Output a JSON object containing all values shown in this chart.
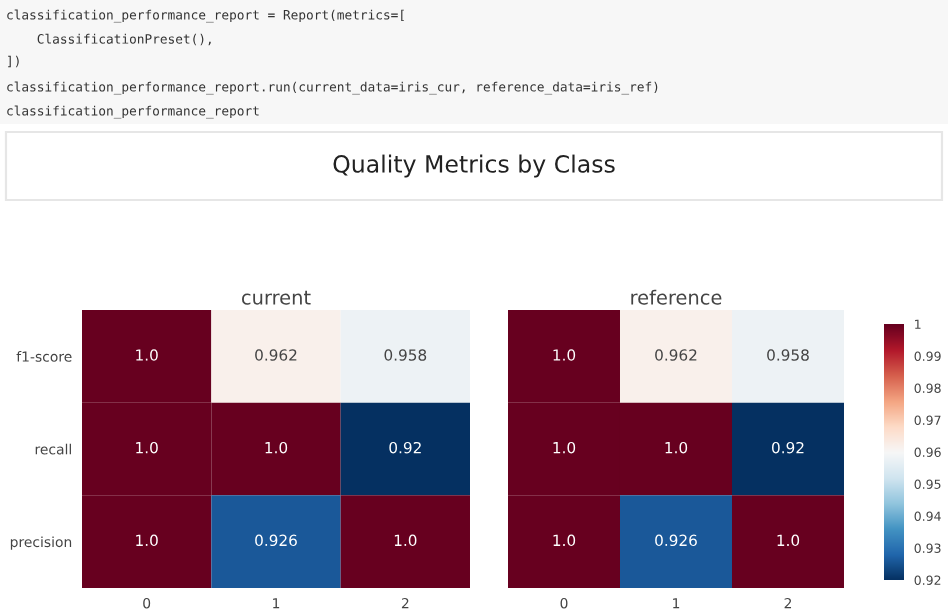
{
  "chart_data": [
    {
      "type": "heatmap",
      "title": "Quality Metrics by Class",
      "subtitle": "current",
      "annotations": [
        "classification_performance_report = Report(metrics=[",
        "    ClassificationPreset(),",
        "])",
        "classification_performance_report.run(current_data=iris_cur, reference_data=iris_ref)",
        "classification_performance_report"
      ],
      "categories": [
        "0",
        "1",
        "2"
      ],
      "y_categories": [
        "f1-score",
        "recall",
        "precision"
      ],
      "cells": [
        [
          1.0,
          0.962,
          0.958
        ],
        [
          1.0,
          1.0,
          0.92
        ],
        [
          1.0,
          0.926,
          1.0
        ]
      ],
      "cell_labels": [
        [
          "1.0",
          "0.962",
          "0.958"
        ],
        [
          "1.0",
          "1.0",
          "0.92"
        ],
        [
          "1.0",
          "0.926",
          "1.0"
        ]
      ],
      "tick_labels": true
    },
    {
      "type": "heatmap",
      "subtitle": "reference",
      "categories": [
        "0",
        "1",
        "2"
      ],
      "y_categories": [
        null,
        null,
        null
      ],
      "cells": [
        [
          1.0,
          0.962,
          0.958
        ],
        [
          1.0,
          1.0,
          0.92
        ],
        [
          1.0,
          0.926,
          1.0
        ]
      ],
      "cell_labels": [
        [
          "1.0",
          "0.962",
          "0.958"
        ],
        [
          "1.0",
          "1.0",
          "0.92"
        ],
        [
          "1.0",
          "0.926",
          "1.0"
        ]
      ],
      "clim": [
        0.92,
        1
      ],
      "cticks": [
        0.92,
        0.93,
        0.94,
        0.95,
        0.96,
        0.97,
        0.98,
        0.99,
        1
      ],
      "tick_labels": "x"
    }
  ]
}
